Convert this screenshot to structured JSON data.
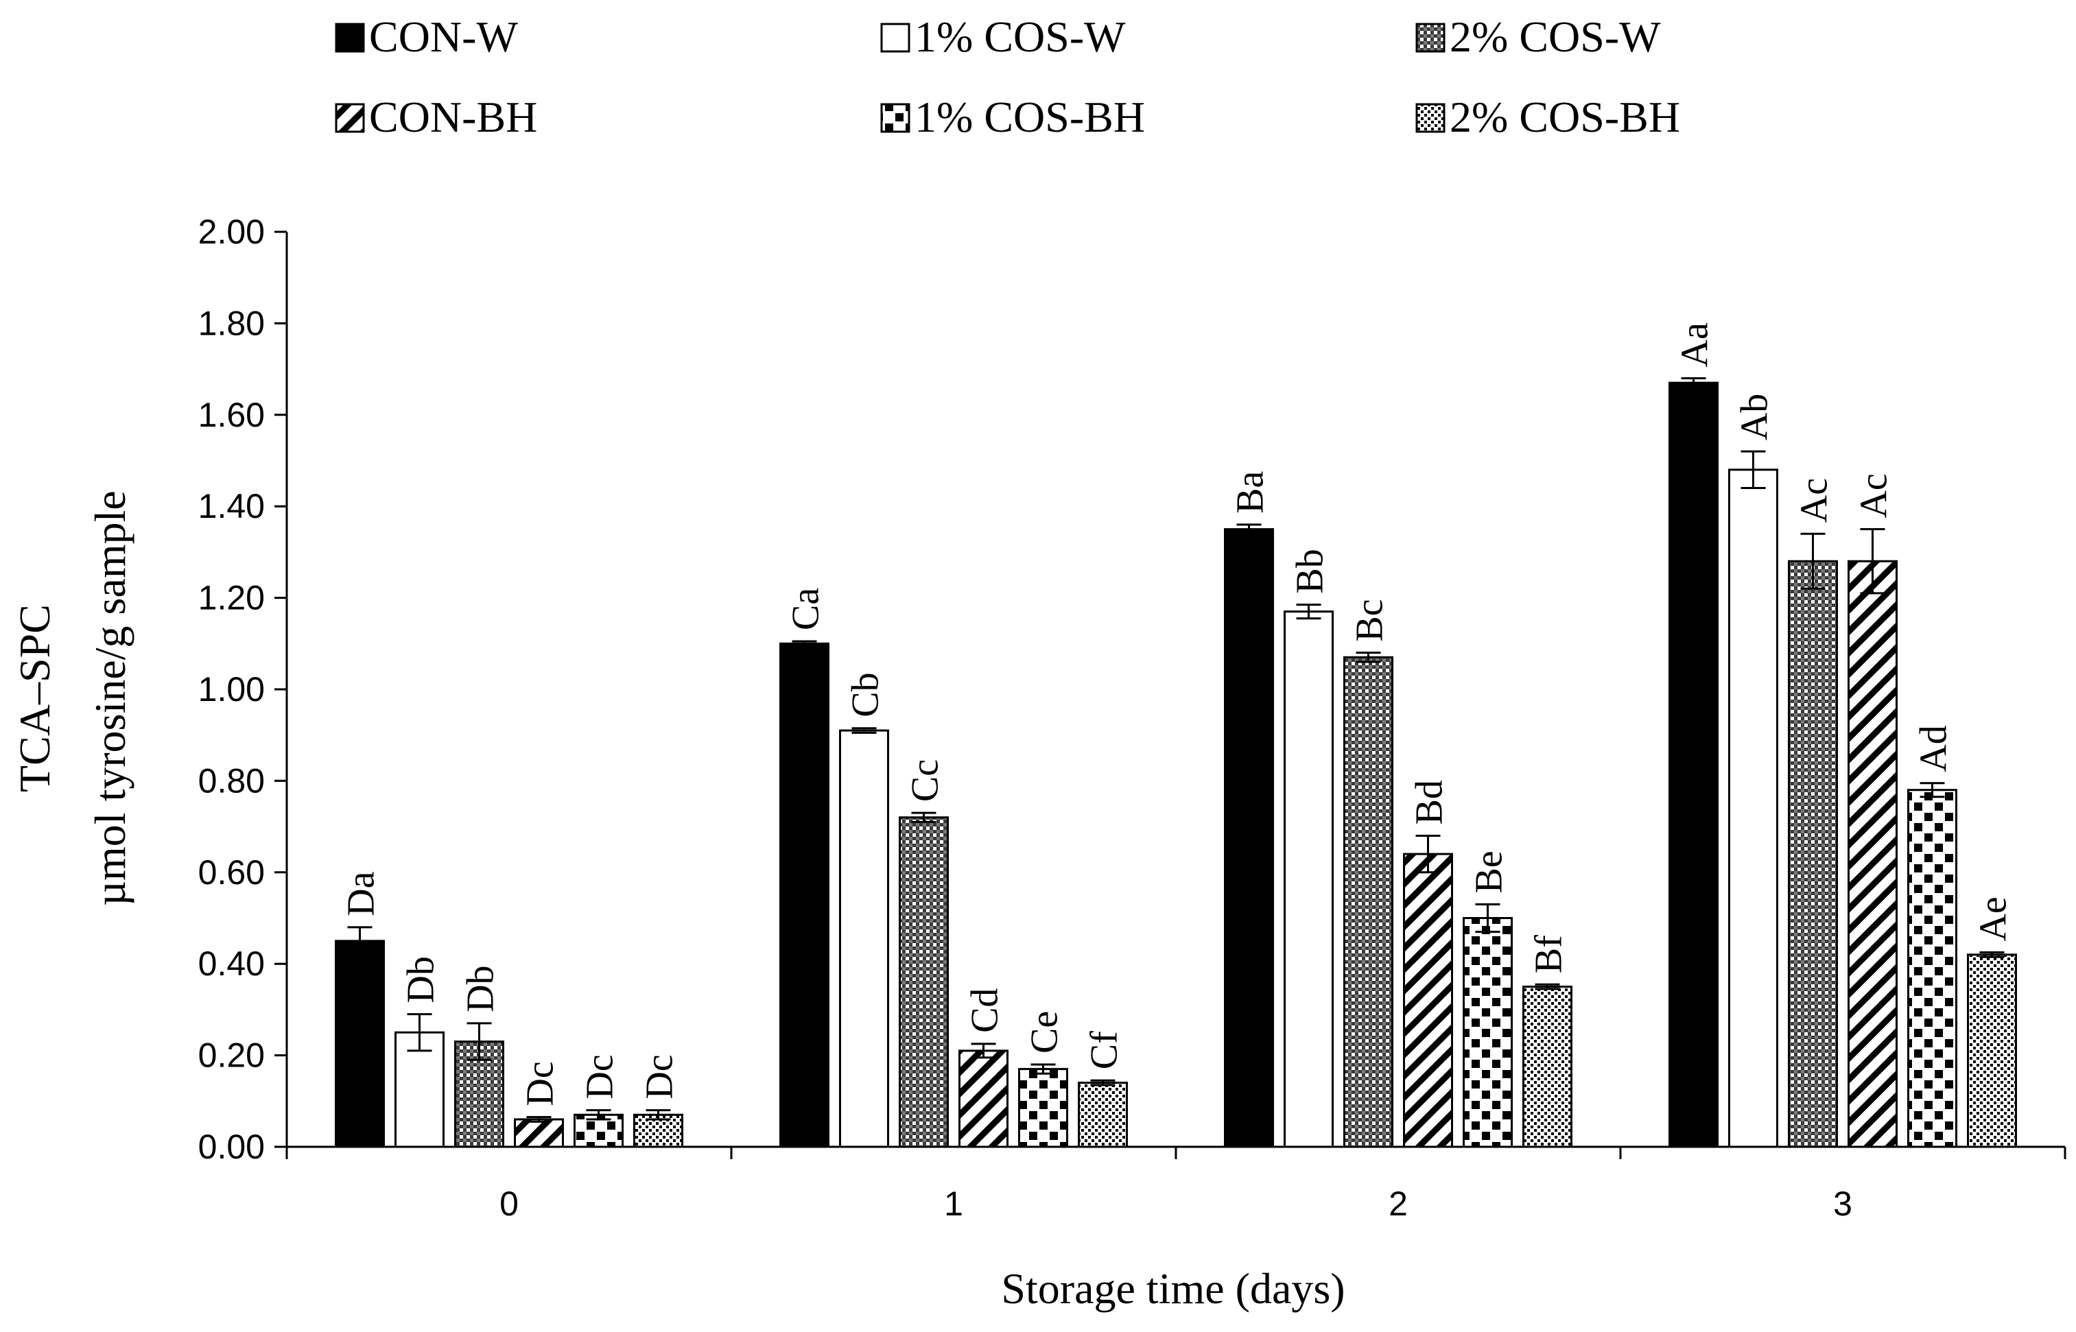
{
  "chart_data": {
    "type": "bar",
    "title": "",
    "xlabel": "Storage time (days)",
    "ylabel_line1": "TCA–SPC",
    "ylabel_line2": "µmol tyrosine/g sample",
    "ylim": [
      0,
      2.0
    ],
    "ytick_step": 0.2,
    "ytick_labels": [
      "0.00",
      "0.20",
      "0.40",
      "0.60",
      "0.80",
      "1.00",
      "1.20",
      "1.40",
      "1.60",
      "1.80",
      "2.00"
    ],
    "categories": [
      "0",
      "1",
      "2",
      "3"
    ],
    "legend_position": "top",
    "series": [
      {
        "name": "CON-W",
        "pattern": "solid-black",
        "values": [
          0.45,
          1.1,
          1.35,
          1.67
        ],
        "errors": [
          0.03,
          0.005,
          0.01,
          0.01
        ],
        "labels": [
          "Da",
          "Ca",
          "Ba",
          "Aa"
        ]
      },
      {
        "name": "1% COS-W",
        "pattern": "white",
        "values": [
          0.25,
          0.91,
          1.17,
          1.48
        ],
        "errors": [
          0.04,
          0.005,
          0.015,
          0.04
        ],
        "labels": [
          "Db",
          "Cb",
          "Bb",
          "Ab"
        ]
      },
      {
        "name": "2% COS-W",
        "pattern": "checker",
        "values": [
          0.23,
          0.72,
          1.07,
          1.28
        ],
        "errors": [
          0.04,
          0.01,
          0.01,
          0.06
        ],
        "labels": [
          "Db",
          "Cc",
          "Bc",
          "Ac"
        ]
      },
      {
        "name": "CON-BH",
        "pattern": "diagonal",
        "values": [
          0.06,
          0.21,
          0.64,
          1.28
        ],
        "errors": [
          0.005,
          0.015,
          0.04,
          0.07
        ],
        "labels": [
          "Dc",
          "Cd",
          "Bd",
          "Ac"
        ]
      },
      {
        "name": "1% COS-BH",
        "pattern": "large-dots",
        "values": [
          0.07,
          0.17,
          0.5,
          0.78
        ],
        "errors": [
          0.01,
          0.01,
          0.03,
          0.015
        ],
        "labels": [
          "Dc",
          "Ce",
          "Be",
          "Ad"
        ]
      },
      {
        "name": "2% COS-BH",
        "pattern": "small-dots",
        "values": [
          0.07,
          0.14,
          0.35,
          0.42
        ],
        "errors": [
          0.01,
          0.005,
          0.005,
          0.005
        ],
        "labels": [
          "Dc",
          "Cf",
          "Bf",
          "Ae"
        ]
      }
    ]
  }
}
